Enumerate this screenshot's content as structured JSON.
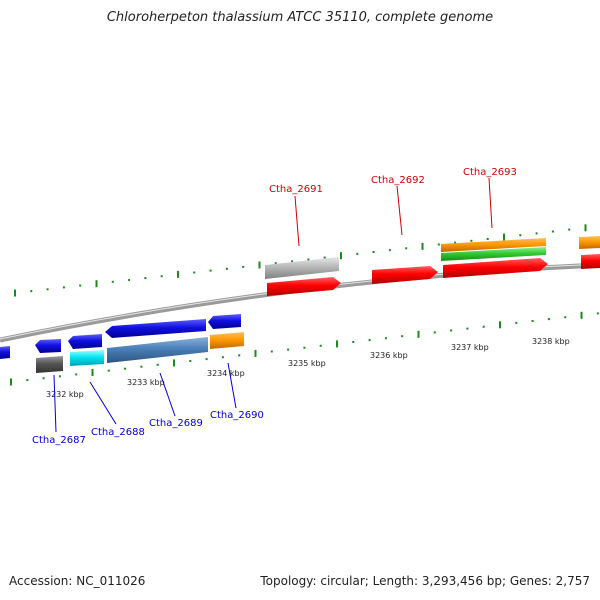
{
  "title": "Chloroherpeton thalassium ATCC 35110, complete genome",
  "accession": "Accession: NC_011026",
  "summary": "Topology: circular; Length: 3,293,456 bp; Genes: 2,757",
  "kbp_labels": [
    "3232 kbp",
    "3233 kbp",
    "3234 kbp",
    "3235 kbp",
    "3236 kbp",
    "3237 kbp",
    "3238 kbp"
  ],
  "minus_strand_genes": [
    "Ctha_2687",
    "Ctha_2688",
    "Ctha_2689",
    "Ctha_2690"
  ],
  "plus_strand_genes": [
    "Ctha_2691",
    "Ctha_2692",
    "Ctha_2693"
  ],
  "colors": {
    "plus_label": "#cc0000",
    "minus_label": "#0000cc",
    "tick": "#1a8a1a",
    "backbone": "#888888",
    "red": "#ff0000",
    "blue": "#1010e0",
    "cyan": "#00e5f0",
    "steelblue": "#4a7fb8",
    "orange": "#ff9900",
    "green": "#33cc33",
    "gray": "#b8b8b8",
    "darkgray": "#555555"
  }
}
